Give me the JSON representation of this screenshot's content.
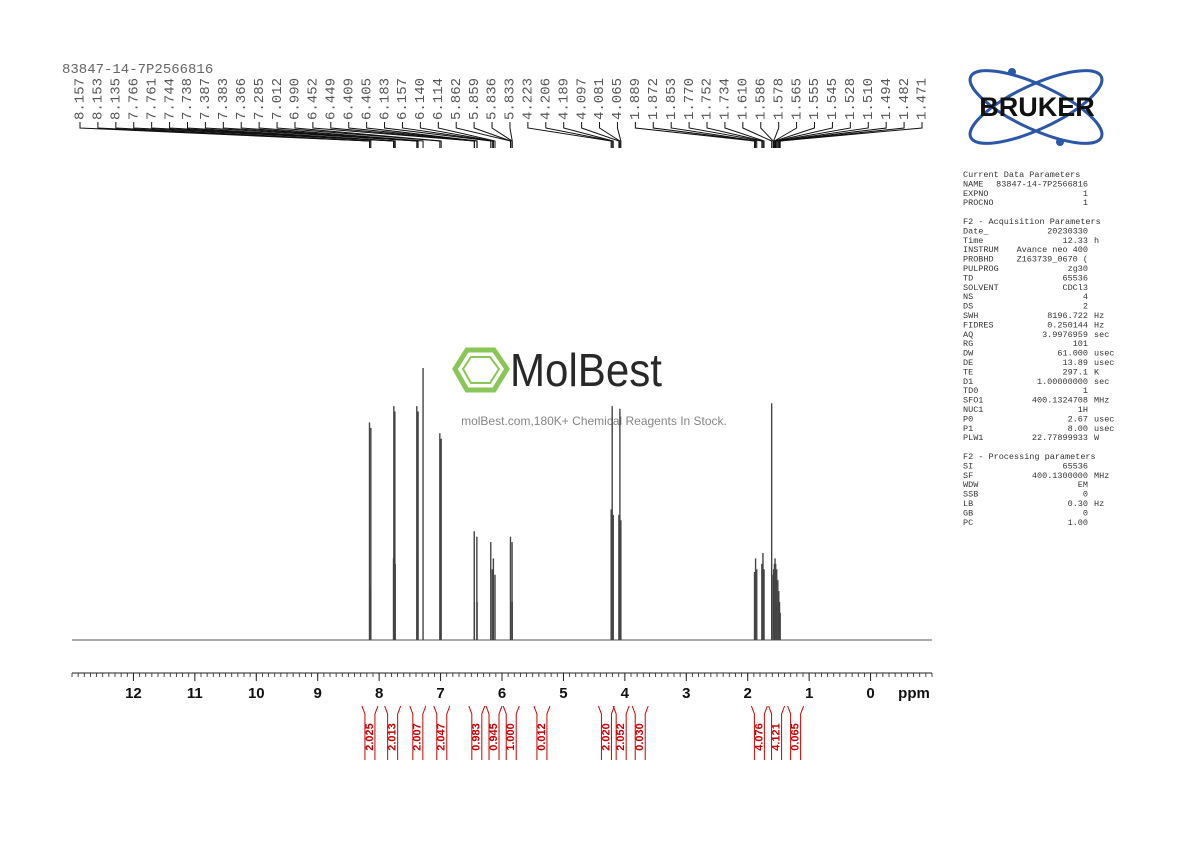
{
  "title": "83847-14-7P2566816",
  "logo": "BRUKER",
  "watermark": {
    "brand": "MolBest",
    "tagline": "molBest.com,180K+ Chemical Reagents In Stock."
  },
  "chart_data": {
    "type": "spectrum",
    "x": [
      8.157,
      8.153,
      8.135,
      7.766,
      7.761,
      7.744,
      7.738,
      7.387,
      7.383,
      7.366,
      7.285,
      7.012,
      6.99,
      6.452,
      6.449,
      6.409,
      6.405,
      6.183,
      6.157,
      6.14,
      6.114,
      5.862,
      5.859,
      5.836,
      5.833,
      4.223,
      4.206,
      4.189,
      4.097,
      4.081,
      4.065,
      1.889,
      1.872,
      1.853,
      1.77,
      1.752,
      1.734,
      1.61,
      1.586,
      1.578,
      1.565,
      1.555,
      1.545,
      1.528,
      1.51,
      1.494,
      1.482,
      1.471
    ],
    "x_labels": [
      "8.157",
      "8.153",
      "8.135",
      "7.766",
      "7.761",
      "7.744",
      "7.738",
      "7.387",
      "7.383",
      "7.366",
      "7.285",
      "7.012",
      "6.990",
      "6.452",
      "6.449",
      "6.409",
      "6.405",
      "6.183",
      "6.157",
      "6.140",
      "6.114",
      "5.862",
      "5.859",
      "5.836",
      "5.833",
      "4.223",
      "4.206",
      "4.189",
      "4.097",
      "4.081",
      "4.065",
      "1.889",
      "1.872",
      "1.853",
      "1.770",
      "1.752",
      "1.734",
      "1.610",
      "1.586",
      "1.578",
      "1.565",
      "1.555",
      "1.545",
      "1.528",
      "1.510",
      "1.494",
      "1.482",
      "1.471"
    ],
    "intensity": [
      80,
      20,
      78,
      30,
      86,
      84,
      28,
      86,
      30,
      84,
      100,
      76,
      74,
      40,
      14,
      38,
      14,
      36,
      26,
      30,
      24,
      38,
      14,
      36,
      14,
      48,
      86,
      46,
      46,
      85,
      44,
      25,
      30,
      26,
      28,
      32,
      26,
      87,
      24,
      26,
      28,
      30,
      28,
      26,
      22,
      18,
      14,
      10
    ],
    "xlim": [
      13,
      -1
    ],
    "ylim": [
      0,
      100
    ],
    "xticks": [
      12,
      11,
      10,
      9,
      8,
      7,
      6,
      5,
      4,
      3,
      2,
      1,
      0
    ],
    "minor_xticks": [
      13,
      12.9,
      12.8,
      12.7,
      12.6,
      12.5,
      12.4,
      12.3,
      12.2,
      12.1,
      12,
      11.9,
      11.8,
      11.7,
      11.6,
      11.5,
      11.4,
      11.3,
      11.2,
      11.1,
      11,
      10.9,
      10.8,
      10.7,
      10.6,
      10.5,
      10.4,
      10.3,
      10.2,
      10.1,
      10,
      9.9,
      9.8,
      9.7,
      9.6,
      9.5,
      9.4,
      9.3,
      9.2,
      9.1,
      9,
      8.9,
      8.8,
      8.7,
      8.6,
      8.5,
      8.4,
      8.3,
      8.2,
      8.1,
      8,
      7.9,
      7.8,
      7.7,
      7.6,
      7.5,
      7.4,
      7.3,
      7.2,
      7.1,
      7,
      6.9,
      6.8,
      6.7,
      6.6,
      6.5,
      6.4,
      6.3,
      6.2,
      6.1,
      6,
      5.9,
      5.8,
      5.7,
      5.6,
      5.5,
      5.4,
      5.3,
      5.2,
      5.1,
      5,
      4.9,
      4.8,
      4.7,
      4.6,
      4.5,
      4.4,
      4.3,
      4.2,
      4.1,
      4,
      3.9,
      3.8,
      3.7,
      3.6,
      3.5,
      3.4,
      3.3,
      3.2,
      3.1,
      3,
      2.9,
      2.8,
      2.7,
      2.6,
      2.5,
      2.4,
      2.3,
      2.2,
      2.1,
      2,
      1.9,
      1.8,
      1.7,
      1.6,
      1.5,
      1.4,
      1.3,
      1.2,
      1.1,
      1,
      0.9,
      0.8,
      0.7,
      0.6,
      0.5,
      0.4,
      0.3,
      0.2,
      0.1,
      0,
      -0.1,
      -0.2,
      -0.3,
      -0.4,
      -0.5,
      -0.6,
      -0.7,
      -0.8,
      -0.9,
      -1
    ],
    "xlabel": "ppm",
    "integrals": {
      "x": [
        8.15,
        7.78,
        7.37,
        6.98,
        6.41,
        6.13,
        5.85,
        5.35,
        4.3,
        4.06,
        3.75,
        1.81,
        1.53,
        1.22
      ],
      "values": [
        2.025,
        2.013,
        2.007,
        2.047,
        0.983,
        0.945,
        1.0,
        0.012,
        2.02,
        2.052,
        0.03,
        4.076,
        4.121,
        0.065
      ],
      "value_labels": [
        "2.025",
        "2.013",
        "2.007",
        "2.047",
        "0.983",
        "0.945",
        "1.000",
        "0.012",
        "2.020",
        "2.052",
        "0.030",
        "4.076",
        "4.121",
        "0.065"
      ]
    }
  },
  "parameters": [
    {
      "title": "Current Data Parameters",
      "rows": [
        [
          "NAME",
          "83847-14-7P2566816"
        ],
        [
          "EXPNO",
          "1"
        ],
        [
          "PROCNO",
          "1"
        ]
      ]
    },
    {
      "title": "F2 - Acquisition Parameters",
      "rows": [
        [
          "Date_",
          "20230330"
        ],
        [
          "Time",
          "12.33",
          "h"
        ],
        [
          "INSTRUM",
          "Avance neo 400"
        ],
        [
          "PROBHD",
          "Z163739_0670 ("
        ],
        [
          "PULPROG",
          "zg30"
        ],
        [
          "TD",
          "65536"
        ],
        [
          "SOLVENT",
          "CDCl3"
        ],
        [
          "NS",
          "4"
        ],
        [
          "DS",
          "2"
        ],
        [
          "SWH",
          "8196.722",
          "Hz"
        ],
        [
          "FIDRES",
          "0.250144",
          "Hz"
        ],
        [
          "AQ",
          "3.9976959",
          "sec"
        ],
        [
          "RG",
          "101"
        ],
        [
          "DW",
          "61.000",
          "usec"
        ],
        [
          "DE",
          "13.89",
          "usec"
        ],
        [
          "TE",
          "297.1",
          "K"
        ],
        [
          "D1",
          "1.00000000",
          "sec"
        ],
        [
          "TD0",
          "1"
        ],
        [
          "SFO1",
          "400.1324708",
          "MHz"
        ],
        [
          "NUC1",
          "1H"
        ],
        [
          "P0",
          "2.67",
          "usec"
        ],
        [
          "P1",
          "8.00",
          "usec"
        ],
        [
          "PLW1",
          "22.77899933",
          "W"
        ]
      ]
    },
    {
      "title": "F2 - Processing parameters",
      "rows": [
        [
          "SI",
          "65536"
        ],
        [
          "SF",
          "400.1300000",
          "MHz"
        ],
        [
          "WDW",
          "EM"
        ],
        [
          "SSB",
          "0"
        ],
        [
          "LB",
          "0.30",
          "Hz"
        ],
        [
          "GB",
          "0"
        ],
        [
          "PC",
          "1.00"
        ]
      ]
    }
  ]
}
